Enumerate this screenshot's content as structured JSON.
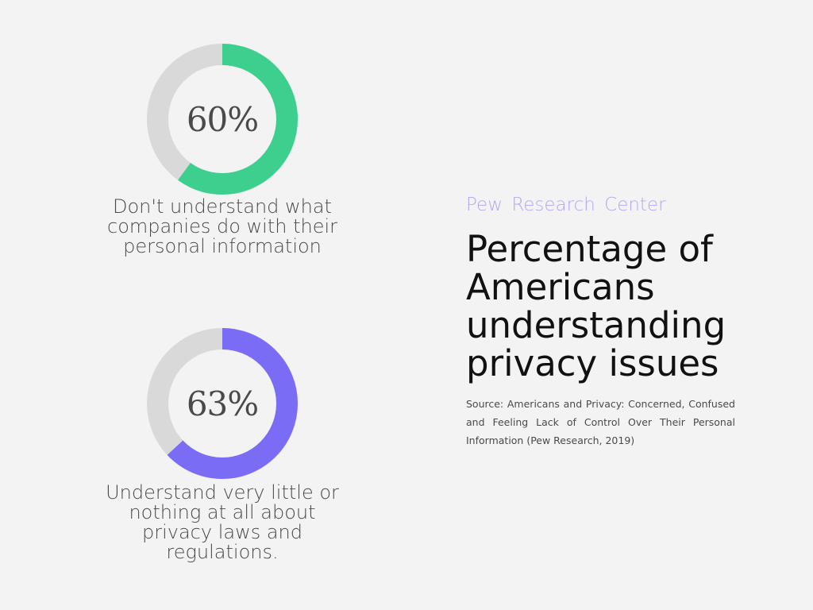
{
  "brand_line": "Pew  Research Center",
  "title": "Percentage of Americans understanding privacy issues",
  "source_note": "Source: Americans and Privacy: Concerned, Confused and Feeling Lack of Control Over Their Personal Information (Pew Research, 2019)",
  "colors": {
    "background": "#f3f3f3",
    "track": "#d9d9d9",
    "green": "#3dcf8e",
    "purple": "#7b6cf6",
    "brand": "#b9a5f0"
  },
  "chart_data": [
    {
      "type": "pie",
      "value": 60,
      "unit": "%",
      "label": "60%",
      "caption": "Don't understand what companies do with their personal information",
      "color": "#3dcf8e"
    },
    {
      "type": "pie",
      "value": 63,
      "unit": "%",
      "label": "63%",
      "caption": "Understand very little or nothing at all about privacy laws and regulations.",
      "color": "#7b6cf6"
    }
  ]
}
